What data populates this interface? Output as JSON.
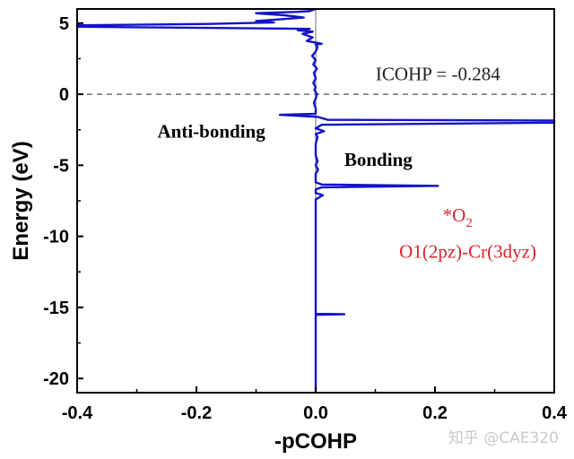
{
  "chart_data": {
    "type": "line",
    "title": "",
    "xlabel": "-pCOHP",
    "ylabel": "Energy (eV)",
    "xlim": [
      -0.4,
      0.4
    ],
    "ylim": [
      -21,
      6
    ],
    "x_ticks": [
      -0.4,
      -0.2,
      0.0,
      0.2,
      0.4
    ],
    "x_tick_labels": [
      "-0.4",
      "-0.2",
      "0.0",
      "0.2",
      "0.4"
    ],
    "y_ticks": [
      -20,
      -15,
      -10,
      -5,
      0,
      5
    ],
    "y_tick_labels": [
      "-20",
      "-15",
      "-10",
      "-5",
      "0",
      "5"
    ],
    "grid": false,
    "fermi_level": 0,
    "series": [
      {
        "color": "#1414c8",
        "points": [
          [
            0.0,
            -21.0
          ],
          [
            0.0,
            -15.45
          ],
          [
            0.048,
            -15.48
          ],
          [
            0.0,
            -15.52
          ],
          [
            0.0,
            -7.4
          ],
          [
            0.012,
            -7.1
          ],
          [
            0.0,
            -6.95
          ],
          [
            0.0,
            -6.7
          ],
          [
            0.01,
            -6.55
          ],
          [
            0.205,
            -6.45
          ],
          [
            0.01,
            -6.35
          ],
          [
            0.0,
            -6.2
          ],
          [
            0.0,
            -5.6
          ],
          [
            0.004,
            -5.3
          ],
          [
            0.0,
            -5.0
          ],
          [
            0.003,
            -4.7
          ],
          [
            0.0,
            -4.3
          ],
          [
            0.0,
            -3.5
          ],
          [
            0.003,
            -3.0
          ],
          [
            0.0,
            -2.8
          ],
          [
            0.014,
            -2.6
          ],
          [
            0.0,
            -2.4
          ],
          [
            0.01,
            -2.15
          ],
          [
            0.4,
            -2.0
          ],
          [
            0.4,
            -1.85
          ],
          [
            0.02,
            -1.8
          ],
          [
            0.004,
            -1.6
          ],
          [
            -0.06,
            -1.45
          ],
          [
            0.0,
            -1.38
          ],
          [
            0.0,
            -1.0
          ],
          [
            -0.003,
            -0.6
          ],
          [
            0.0,
            -0.3
          ],
          [
            0.002,
            0.0
          ],
          [
            -0.002,
            0.3
          ],
          [
            0.0,
            0.5
          ],
          [
            -0.004,
            0.8
          ],
          [
            0.0,
            1.1
          ],
          [
            -0.003,
            1.5
          ],
          [
            0.002,
            1.8
          ],
          [
            -0.004,
            2.1
          ],
          [
            0.0,
            2.4
          ],
          [
            -0.006,
            2.7
          ],
          [
            0.0,
            3.0
          ],
          [
            0.003,
            3.3
          ],
          [
            0.0,
            3.5
          ],
          [
            0.01,
            3.55
          ],
          [
            -0.015,
            3.75
          ],
          [
            -0.005,
            4.0
          ],
          [
            -0.022,
            4.25
          ],
          [
            -0.005,
            4.4
          ],
          [
            -0.03,
            4.5
          ],
          [
            -0.01,
            4.6
          ],
          [
            -0.4,
            4.75
          ],
          [
            -0.4,
            4.85
          ],
          [
            -0.18,
            4.95
          ],
          [
            -0.07,
            5.05
          ],
          [
            -0.1,
            5.15
          ],
          [
            -0.05,
            5.3
          ],
          [
            -0.02,
            5.4
          ],
          [
            -0.05,
            5.55
          ],
          [
            -0.1,
            5.7
          ],
          [
            -0.03,
            5.8
          ],
          [
            -0.01,
            5.85
          ],
          [
            0.0,
            6.0
          ]
        ]
      }
    ],
    "annotations": [
      {
        "id": "icohp",
        "text": "ICOHP = -0.284",
        "x": 0.205,
        "y": 1.0
      },
      {
        "id": "antibonding",
        "text": "Anti-bonding",
        "x": -0.175,
        "y": -3.05
      },
      {
        "id": "bonding",
        "text": "Bonding",
        "x": 0.105,
        "y": -5.05
      },
      {
        "id": "species",
        "text": "*O",
        "subscript": "2",
        "x": 0.238,
        "y": -8.95
      },
      {
        "id": "orbital",
        "text": "O1(2pz)-Cr(3dyz)",
        "x": 0.255,
        "y": -11.5
      }
    ],
    "colors": {
      "series": "#1414c8",
      "annotation_red": "#d9252c",
      "fermi_line": "#555555",
      "zero_line": "#888888"
    }
  },
  "watermark": "知乎 @CAE320"
}
